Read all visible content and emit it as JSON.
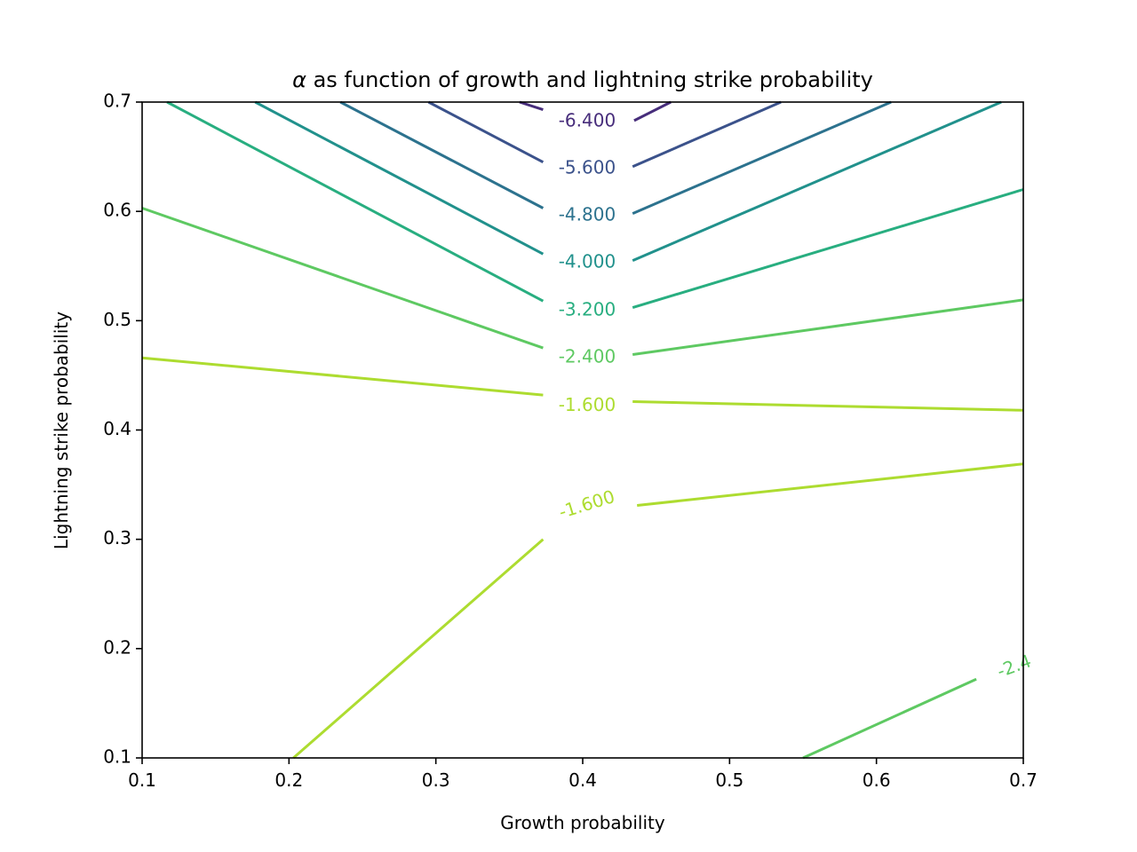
{
  "chart_data": {
    "type": "contour",
    "title_symbol": "α",
    "title_rest": " as function of growth and lightning strike probability",
    "xlabel": "Growth probability",
    "ylabel": "Lightning strike probability",
    "xlim": [
      0.1,
      0.7
    ],
    "ylim": [
      0.1,
      0.7
    ],
    "xticks": [
      "0.1",
      "0.2",
      "0.3",
      "0.4",
      "0.5",
      "0.6",
      "0.7"
    ],
    "yticks": [
      "0.1",
      "0.2",
      "0.3",
      "0.4",
      "0.5",
      "0.6",
      "0.7"
    ],
    "grid": false,
    "levels": [
      {
        "level": -6.4,
        "label": "-6.400",
        "color": "#472d7b",
        "segments": [
          [
            [
              0.357,
              0.7
            ],
            [
              0.373,
              0.693
            ]
          ],
          [
            [
              0.435,
              0.683
            ],
            [
              0.46,
              0.7
            ]
          ]
        ],
        "label_pos": [
          0.403,
          0.682
        ],
        "label_angle": 0
      },
      {
        "level": -5.6,
        "label": "-5.600",
        "color": "#3b528b",
        "segments": [
          [
            [
              0.295,
              0.7
            ],
            [
              0.373,
              0.645
            ]
          ],
          [
            [
              0.434,
              0.641
            ],
            [
              0.535,
              0.7
            ]
          ]
        ],
        "label_pos": [
          0.403,
          0.639
        ],
        "label_angle": 0
      },
      {
        "level": -4.8,
        "label": "-4.800",
        "color": "#2c728e",
        "segments": [
          [
            [
              0.235,
              0.7
            ],
            [
              0.373,
              0.603
            ]
          ],
          [
            [
              0.434,
              0.598
            ],
            [
              0.61,
              0.7
            ]
          ]
        ],
        "label_pos": [
          0.403,
          0.596
        ],
        "label_angle": 0
      },
      {
        "level": -4.0,
        "label": "-4.000",
        "color": "#21918c",
        "segments": [
          [
            [
              0.177,
              0.7
            ],
            [
              0.373,
              0.561
            ]
          ],
          [
            [
              0.434,
              0.555
            ],
            [
              0.685,
              0.7
            ]
          ]
        ],
        "label_pos": [
          0.403,
          0.553
        ],
        "label_angle": 0
      },
      {
        "level": -3.2,
        "label": "-3.200",
        "color": "#28ae80",
        "segments": [
          [
            [
              0.117,
              0.7
            ],
            [
              0.373,
              0.518
            ]
          ],
          [
            [
              0.434,
              0.512
            ],
            [
              0.7,
              0.62
            ]
          ]
        ],
        "label_pos": [
          0.403,
          0.509
        ],
        "label_angle": 0
      },
      {
        "level": -2.4,
        "label": "-2.400",
        "color": "#5ec962",
        "segments": [
          [
            [
              0.1,
              0.603
            ],
            [
              0.373,
              0.475
            ]
          ],
          [
            [
              0.434,
              0.469
            ],
            [
              0.7,
              0.519
            ]
          ]
        ],
        "label_pos": [
          0.403,
          0.466
        ],
        "label_angle": 0
      },
      {
        "level": -1.6,
        "label": "-1.600",
        "color": "#addc30",
        "segments": [
          [
            [
              0.1,
              0.466
            ],
            [
              0.373,
              0.432
            ]
          ],
          [
            [
              0.434,
              0.426
            ],
            [
              0.7,
              0.418
            ]
          ]
        ],
        "label_pos": [
          0.403,
          0.422
        ],
        "label_angle": 0
      },
      {
        "level": -1.6,
        "label": "-1.600",
        "color": "#addc30",
        "segments": [
          [
            [
              0.203,
              0.1
            ],
            [
              0.373,
              0.3
            ]
          ],
          [
            [
              0.437,
              0.331
            ],
            [
              0.7,
              0.369
            ]
          ]
        ],
        "label_pos": [
          0.403,
          0.331
        ],
        "label_angle": -17
      },
      {
        "level": -2.4,
        "label": "-2.4",
        "color": "#5ec962",
        "segments": [
          [
            [
              0.55,
              0.1
            ],
            [
              0.668,
              0.172
            ]
          ]
        ],
        "label_pos": [
          0.694,
          0.183
        ],
        "label_angle": -20
      }
    ]
  }
}
